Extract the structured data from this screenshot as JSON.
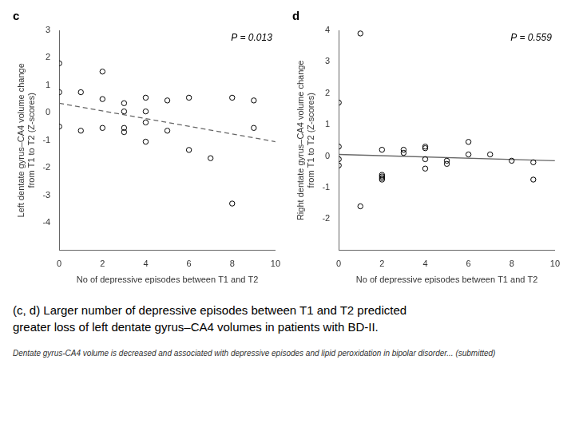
{
  "chart_data": [
    {
      "type": "scatter",
      "title": "c",
      "xlabel": "No of depressive episodes between T1 and T2",
      "ylabel": "Left dentate gyrus–CA4 volume change\nfrom T1 to T2 (Z-scores)",
      "annotations": [
        "P = 0.013"
      ],
      "xlim": [
        0,
        10
      ],
      "xticks": [
        0,
        2,
        4,
        6,
        8,
        10
      ],
      "ylim": [
        -5,
        3
      ],
      "yticks": [
        -4,
        -3,
        -2,
        -1,
        0,
        1,
        2,
        3
      ],
      "grid": false,
      "series": [
        {
          "type": "scatter",
          "marker": "circle",
          "color": "#000000",
          "x": [
            0,
            0,
            0,
            1,
            1,
            2,
            2,
            2,
            3,
            3,
            3,
            3,
            4,
            4,
            4,
            4,
            5,
            5,
            6,
            6,
            7,
            8,
            8,
            9,
            9
          ],
          "values": [
            1.8,
            0.75,
            -0.5,
            0.75,
            -0.65,
            1.5,
            0.5,
            -0.55,
            0.35,
            0.05,
            -0.55,
            -0.7,
            0.55,
            0.05,
            -0.35,
            -1.05,
            0.45,
            -0.65,
            0.55,
            -1.35,
            -1.65,
            -3.3,
            0.55,
            0.45,
            -0.55
          ]
        },
        {
          "type": "line",
          "line_style": "dashed",
          "color": "#666666",
          "x": [
            0,
            10
          ],
          "values": [
            0.35,
            -1.05
          ]
        }
      ]
    },
    {
      "type": "scatter",
      "title": "d",
      "xlabel": "No of depressive episodes between T1 and T2",
      "ylabel": "Right dentate gyrus–CA4 volume change\nfrom T1 to T2 (Z-scores)",
      "annotations": [
        "P = 0.559"
      ],
      "xlim": [
        0,
        10
      ],
      "xticks": [
        0,
        2,
        4,
        6,
        8,
        10
      ],
      "ylim": [
        -3,
        4
      ],
      "yticks": [
        -2,
        -1,
        0,
        1,
        2,
        3,
        4
      ],
      "grid": false,
      "series": [
        {
          "type": "scatter",
          "marker": "circle",
          "color": "#000000",
          "x": [
            0,
            0,
            0,
            0,
            1,
            1,
            2,
            2,
            2,
            2,
            2,
            3,
            3,
            4,
            4,
            4,
            4,
            5,
            5,
            6,
            6,
            7,
            8,
            9,
            9
          ],
          "values": [
            1.7,
            0.3,
            -0.1,
            -0.3,
            3.9,
            -1.6,
            -0.6,
            -0.65,
            -0.7,
            -0.75,
            0.2,
            0.2,
            0.1,
            0.3,
            0.25,
            -0.1,
            -0.4,
            -0.15,
            -0.25,
            0.45,
            0.05,
            0.05,
            -0.15,
            -0.2,
            -0.75
          ]
        },
        {
          "type": "line",
          "line_style": "solid",
          "color": "#666666",
          "x": [
            0,
            10
          ],
          "values": [
            0.05,
            -0.15
          ]
        }
      ]
    }
  ],
  "caption": [
    "(c, d) Larger number of depressive episodes between T1 and T2 predicted",
    "greater loss of left dentate gyrus–CA4 volumes in patients with BD-II."
  ],
  "footnote": "Dentate gyrus-CA4 volume is decreased and associated with depressive episodes and lipid peroxidation in bipolar disorder...  (submitted)"
}
